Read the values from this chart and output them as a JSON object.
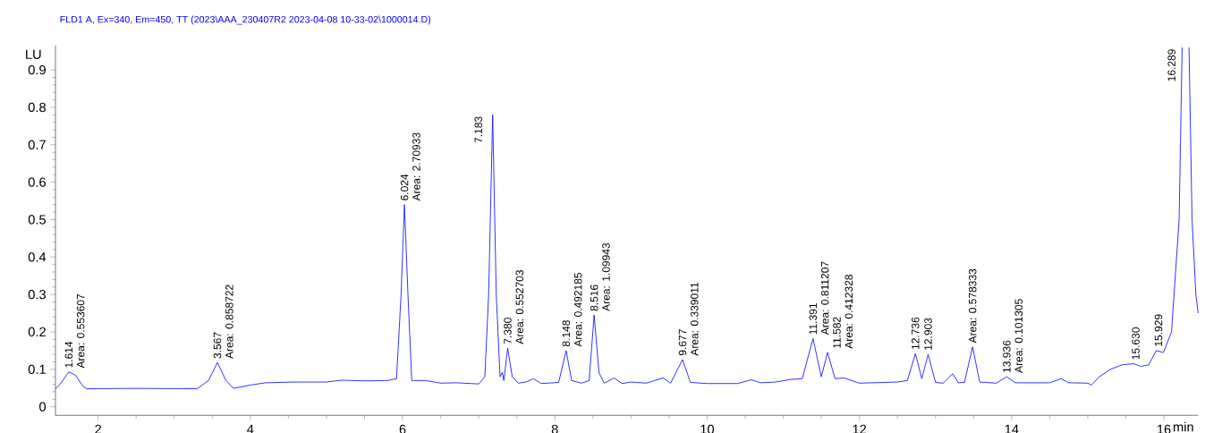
{
  "chart_data": {
    "type": "line",
    "title": "FLD1 A, Ex=340, Em=450, TT (2023\\AAA_230407R2 2023-04-08 10-33-02\\1000014.D)",
    "xlabel": "min",
    "ylabel": "LU",
    "xlim": [
      1.44,
      16.45
    ],
    "ylim": [
      -0.023,
      0.965
    ],
    "xticks": [
      2,
      4,
      6,
      8,
      10,
      12,
      14,
      16
    ],
    "yticks": [
      0,
      0.1,
      0.2,
      0.3,
      0.4,
      0.5,
      0.6,
      0.7,
      0.8,
      0.9
    ],
    "grid": false,
    "legend": false,
    "marker": "none",
    "line_style": "solid",
    "series": [
      {
        "color": "#0000ff",
        "x": [
          1.44,
          1.5,
          1.614,
          1.7,
          1.8,
          1.85,
          2.5,
          3.3,
          3.45,
          3.567,
          3.68,
          3.78,
          4.0,
          4.2,
          4.6,
          5.0,
          5.2,
          5.5,
          5.8,
          5.92,
          5.98,
          6.024,
          6.07,
          6.12,
          6.3,
          6.5,
          6.7,
          7.0,
          7.08,
          7.13,
          7.183,
          7.23,
          7.28,
          7.31,
          7.33,
          7.38,
          7.44,
          7.52,
          7.62,
          7.72,
          7.82,
          8.05,
          8.148,
          8.22,
          8.35,
          8.45,
          8.516,
          8.58,
          8.65,
          8.78,
          8.88,
          9.0,
          9.2,
          9.42,
          9.52,
          9.677,
          9.78,
          10.0,
          10.4,
          10.58,
          10.7,
          10.9,
          11.1,
          11.25,
          11.391,
          11.5,
          11.582,
          11.68,
          11.8,
          12.0,
          12.5,
          12.63,
          12.736,
          12.82,
          12.903,
          13.0,
          13.1,
          13.225,
          13.3,
          13.38,
          13.487,
          13.58,
          13.8,
          13.936,
          14.05,
          14.5,
          14.65,
          14.75,
          15.0,
          15.05,
          15.15,
          15.3,
          15.45,
          15.6,
          15.7,
          15.8,
          15.9,
          15.994,
          16.1,
          16.2,
          16.24,
          16.289,
          16.33,
          16.37,
          16.42,
          16.45
        ],
        "values": [
          0.048,
          0.06,
          0.093,
          0.085,
          0.055,
          0.048,
          0.049,
          0.048,
          0.07,
          0.118,
          0.07,
          0.049,
          0.058,
          0.064,
          0.066,
          0.066,
          0.071,
          0.069,
          0.07,
          0.075,
          0.3,
          0.54,
          0.3,
          0.07,
          0.07,
          0.063,
          0.064,
          0.061,
          0.08,
          0.3,
          0.78,
          0.3,
          0.08,
          0.092,
          0.07,
          0.157,
          0.08,
          0.063,
          0.066,
          0.075,
          0.062,
          0.065,
          0.15,
          0.07,
          0.063,
          0.07,
          0.245,
          0.09,
          0.063,
          0.077,
          0.062,
          0.066,
          0.063,
          0.077,
          0.063,
          0.126,
          0.065,
          0.062,
          0.062,
          0.072,
          0.064,
          0.066,
          0.073,
          0.075,
          0.182,
          0.08,
          0.145,
          0.075,
          0.077,
          0.063,
          0.066,
          0.07,
          0.142,
          0.075,
          0.14,
          0.065,
          0.063,
          0.088,
          0.064,
          0.065,
          0.16,
          0.066,
          0.063,
          0.08,
          0.064,
          0.064,
          0.075,
          0.064,
          0.063,
          0.058,
          0.08,
          0.1,
          0.112,
          0.115,
          0.108,
          0.112,
          0.15,
          0.145,
          0.2,
          0.5,
          0.96,
          null,
          0.96,
          0.5,
          0.3,
          0.25
        ]
      }
    ],
    "annotations": [
      {
        "text": "1.614",
        "x": 1.614,
        "y": 0.093
      },
      {
        "text": "Area: 0.553607",
        "x": 1.614,
        "y": 0.093
      },
      {
        "text": "3.567",
        "x": 3.567,
        "y": 0.118
      },
      {
        "text": "Area: 0.858722",
        "x": 3.567,
        "y": 0.118
      },
      {
        "text": "6.024",
        "x": 6.024,
        "y": 0.54
      },
      {
        "text": "Area: 2.70933",
        "x": 6.024,
        "y": 0.54
      },
      {
        "text": "7.183",
        "x": 7.183,
        "y": 0.78
      },
      {
        "text": "7.380",
        "x": 7.38,
        "y": 0.157
      },
      {
        "text": "Area: 0.552703",
        "x": 7.38,
        "y": 0.157
      },
      {
        "text": "8.148",
        "x": 8.148,
        "y": 0.15
      },
      {
        "text": "Area: 0.492185",
        "x": 8.148,
        "y": 0.15
      },
      {
        "text": "8.516",
        "x": 8.516,
        "y": 0.245
      },
      {
        "text": "Area: 1.09943",
        "x": 8.516,
        "y": 0.245
      },
      {
        "text": "9.677",
        "x": 9.677,
        "y": 0.126
      },
      {
        "text": "Area: 0.339011",
        "x": 9.677,
        "y": 0.126
      },
      {
        "text": "11.391",
        "x": 11.391,
        "y": 0.182
      },
      {
        "text": "Area: 0.811207",
        "x": 11.391,
        "y": 0.182
      },
      {
        "text": "11.582",
        "x": 11.582,
        "y": 0.145
      },
      {
        "text": "Area: 0.412328",
        "x": 11.582,
        "y": 0.145
      },
      {
        "text": "12.736",
        "x": 12.736,
        "y": 0.142
      },
      {
        "text": "12.903",
        "x": 12.903,
        "y": 0.14
      },
      {
        "text": "Area: 0.578333",
        "x": 13.487,
        "y": 0.16
      },
      {
        "text": "13.936",
        "x": 13.936,
        "y": 0.08
      },
      {
        "text": "Area: 0.101305",
        "x": 13.936,
        "y": 0.08
      },
      {
        "text": "15.630",
        "x": 15.63,
        "y": 0.115
      },
      {
        "text": "15.929",
        "x": 15.929,
        "y": 0.15
      },
      {
        "text": "16.289",
        "x": 16.289,
        "y": 0.96
      }
    ]
  }
}
